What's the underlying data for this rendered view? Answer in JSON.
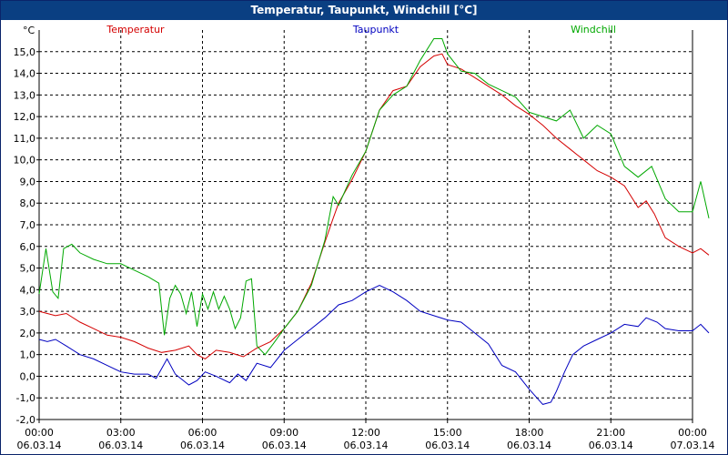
{
  "window": {
    "title": "Temperatur, Taupunkt, Windchill [°C]"
  },
  "chart_data": {
    "type": "line",
    "title": "Temperatur, Taupunkt, Windchill [°C]",
    "ylabel": "°C",
    "xlabel": "",
    "ylim": [
      -2.0,
      16.0
    ],
    "xlim_hours": [
      0,
      24
    ],
    "grid": true,
    "y_ticks": [
      {
        "value": -2.0,
        "label": "-2,0"
      },
      {
        "value": -1.0,
        "label": "-1,0"
      },
      {
        "value": 0.0,
        "label": "0,0"
      },
      {
        "value": 1.0,
        "label": "1,0"
      },
      {
        "value": 2.0,
        "label": "2,0"
      },
      {
        "value": 3.0,
        "label": "3,0"
      },
      {
        "value": 4.0,
        "label": "4,0"
      },
      {
        "value": 5.0,
        "label": "5,0"
      },
      {
        "value": 6.0,
        "label": "6,0"
      },
      {
        "value": 7.0,
        "label": "7,0"
      },
      {
        "value": 8.0,
        "label": "8,0"
      },
      {
        "value": 9.0,
        "label": "9,0"
      },
      {
        "value": 10.0,
        "label": "10,0"
      },
      {
        "value": 11.0,
        "label": "11,0"
      },
      {
        "value": 12.0,
        "label": "12,0"
      },
      {
        "value": 13.0,
        "label": "13,0"
      },
      {
        "value": 14.0,
        "label": "14,0"
      },
      {
        "value": 15.0,
        "label": "15,0"
      }
    ],
    "x_ticks": [
      {
        "hour": 0,
        "time": "00:00",
        "date": "06.03.14"
      },
      {
        "hour": 3,
        "time": "03:00",
        "date": "06.03.14"
      },
      {
        "hour": 6,
        "time": "06:00",
        "date": "06.03.14"
      },
      {
        "hour": 9,
        "time": "09:00",
        "date": "06.03.14"
      },
      {
        "hour": 12,
        "time": "12:00",
        "date": "06.03.14"
      },
      {
        "hour": 15,
        "time": "15:00",
        "date": "06.03.14"
      },
      {
        "hour": 18,
        "time": "18:00",
        "date": "06.03.14"
      },
      {
        "hour": 21,
        "time": "21:00",
        "date": "06.03.14"
      },
      {
        "hour": 24,
        "time": "00:00",
        "date": "07.03.14"
      }
    ],
    "series": [
      {
        "name": "Temperatur",
        "color": "#d40000",
        "legend_position": "left",
        "points": [
          [
            0,
            3.0
          ],
          [
            0.3,
            2.9
          ],
          [
            0.6,
            2.8
          ],
          [
            1.0,
            2.9
          ],
          [
            1.5,
            2.5
          ],
          [
            2.0,
            2.2
          ],
          [
            2.5,
            1.9
          ],
          [
            3.0,
            1.8
          ],
          [
            3.5,
            1.6
          ],
          [
            4.0,
            1.3
          ],
          [
            4.5,
            1.1
          ],
          [
            5.0,
            1.2
          ],
          [
            5.5,
            1.4
          ],
          [
            5.8,
            1.0
          ],
          [
            6.1,
            0.8
          ],
          [
            6.5,
            1.2
          ],
          [
            7.0,
            1.1
          ],
          [
            7.5,
            0.9
          ],
          [
            8.0,
            1.3
          ],
          [
            8.5,
            1.6
          ],
          [
            9.0,
            2.2
          ],
          [
            9.5,
            3.0
          ],
          [
            10.0,
            4.3
          ],
          [
            10.5,
            6.2
          ],
          [
            10.8,
            7.3
          ],
          [
            11.0,
            8.0
          ],
          [
            11.5,
            9.1
          ],
          [
            12.0,
            10.4
          ],
          [
            12.5,
            12.3
          ],
          [
            13.0,
            13.2
          ],
          [
            13.5,
            13.4
          ],
          [
            14.0,
            14.3
          ],
          [
            14.5,
            14.8
          ],
          [
            14.8,
            14.9
          ],
          [
            15.0,
            14.4
          ],
          [
            15.5,
            14.2
          ],
          [
            16.0,
            13.8
          ],
          [
            16.5,
            13.4
          ],
          [
            17.0,
            13.0
          ],
          [
            17.5,
            12.5
          ],
          [
            18.0,
            12.1
          ],
          [
            18.5,
            11.6
          ],
          [
            19.0,
            11.0
          ],
          [
            19.5,
            10.5
          ],
          [
            20.0,
            10.0
          ],
          [
            20.5,
            9.5
          ],
          [
            21.0,
            9.2
          ],
          [
            21.5,
            8.8
          ],
          [
            22.0,
            7.8
          ],
          [
            22.3,
            8.1
          ],
          [
            22.6,
            7.5
          ],
          [
            23.0,
            6.4
          ],
          [
            23.5,
            6.0
          ],
          [
            24.0,
            5.7
          ],
          [
            24.3,
            5.9
          ],
          [
            24.6,
            5.6
          ]
        ]
      },
      {
        "name": "Taupunkt",
        "color": "#0000c0",
        "legend_position": "center",
        "points": [
          [
            0,
            1.7
          ],
          [
            0.3,
            1.6
          ],
          [
            0.6,
            1.7
          ],
          [
            1.0,
            1.4
          ],
          [
            1.5,
            1.0
          ],
          [
            2.0,
            0.8
          ],
          [
            2.5,
            0.5
          ],
          [
            3.0,
            0.2
          ],
          [
            3.5,
            0.1
          ],
          [
            4.0,
            0.1
          ],
          [
            4.3,
            -0.1
          ],
          [
            4.7,
            0.8
          ],
          [
            5.0,
            0.1
          ],
          [
            5.5,
            -0.4
          ],
          [
            5.8,
            -0.2
          ],
          [
            6.1,
            0.2
          ],
          [
            6.5,
            0.0
          ],
          [
            7.0,
            -0.3
          ],
          [
            7.3,
            0.1
          ],
          [
            7.6,
            -0.2
          ],
          [
            8.0,
            0.6
          ],
          [
            8.5,
            0.4
          ],
          [
            9.0,
            1.2
          ],
          [
            9.5,
            1.7
          ],
          [
            10.0,
            2.2
          ],
          [
            10.5,
            2.7
          ],
          [
            11.0,
            3.3
          ],
          [
            11.5,
            3.5
          ],
          [
            12.0,
            3.9
          ],
          [
            12.5,
            4.2
          ],
          [
            13.0,
            3.9
          ],
          [
            13.5,
            3.5
          ],
          [
            14.0,
            3.0
          ],
          [
            14.5,
            2.8
          ],
          [
            15.0,
            2.6
          ],
          [
            15.5,
            2.5
          ],
          [
            16.0,
            2.0
          ],
          [
            16.5,
            1.5
          ],
          [
            17.0,
            0.5
          ],
          [
            17.5,
            0.2
          ],
          [
            18.0,
            -0.6
          ],
          [
            18.5,
            -1.3
          ],
          [
            18.8,
            -1.2
          ],
          [
            19.0,
            -0.7
          ],
          [
            19.3,
            0.2
          ],
          [
            19.6,
            1.0
          ],
          [
            20.0,
            1.4
          ],
          [
            20.5,
            1.7
          ],
          [
            21.0,
            2.0
          ],
          [
            21.5,
            2.4
          ],
          [
            22.0,
            2.3
          ],
          [
            22.3,
            2.7
          ],
          [
            22.7,
            2.5
          ],
          [
            23.0,
            2.2
          ],
          [
            23.5,
            2.1
          ],
          [
            24.0,
            2.1
          ],
          [
            24.3,
            2.4
          ],
          [
            24.6,
            2.0
          ]
        ]
      },
      {
        "name": "Windchill",
        "color": "#00a800",
        "legend_position": "right",
        "points": [
          [
            0,
            3.8
          ],
          [
            0.25,
            5.9
          ],
          [
            0.5,
            3.9
          ],
          [
            0.7,
            3.6
          ],
          [
            0.9,
            5.9
          ],
          [
            1.2,
            6.1
          ],
          [
            1.5,
            5.7
          ],
          [
            2.0,
            5.4
          ],
          [
            2.5,
            5.2
          ],
          [
            3.0,
            5.2
          ],
          [
            3.5,
            4.9
          ],
          [
            4.0,
            4.6
          ],
          [
            4.4,
            4.3
          ],
          [
            4.6,
            1.9
          ],
          [
            4.8,
            3.6
          ],
          [
            5.0,
            4.2
          ],
          [
            5.2,
            3.8
          ],
          [
            5.4,
            2.9
          ],
          [
            5.6,
            3.9
          ],
          [
            5.8,
            2.3
          ],
          [
            6.0,
            3.8
          ],
          [
            6.2,
            3.1
          ],
          [
            6.4,
            3.9
          ],
          [
            6.6,
            3.1
          ],
          [
            6.8,
            3.7
          ],
          [
            7.0,
            3.1
          ],
          [
            7.2,
            2.2
          ],
          [
            7.4,
            2.7
          ],
          [
            7.6,
            4.4
          ],
          [
            7.8,
            4.5
          ],
          [
            8.0,
            1.4
          ],
          [
            8.3,
            1.0
          ],
          [
            8.6,
            1.5
          ],
          [
            9.0,
            2.2
          ],
          [
            9.5,
            3.0
          ],
          [
            10.0,
            4.2
          ],
          [
            10.5,
            6.3
          ],
          [
            10.8,
            8.3
          ],
          [
            11.0,
            7.9
          ],
          [
            11.5,
            9.3
          ],
          [
            12.0,
            10.4
          ],
          [
            12.5,
            12.3
          ],
          [
            13.0,
            13.0
          ],
          [
            13.5,
            13.4
          ],
          [
            14.0,
            14.6
          ],
          [
            14.5,
            15.6
          ],
          [
            14.8,
            15.6
          ],
          [
            15.0,
            14.9
          ],
          [
            15.5,
            14.1
          ],
          [
            16.0,
            14.0
          ],
          [
            16.5,
            13.5
          ],
          [
            17.0,
            13.2
          ],
          [
            17.5,
            12.9
          ],
          [
            18.0,
            12.2
          ],
          [
            18.5,
            12.0
          ],
          [
            19.0,
            11.8
          ],
          [
            19.5,
            12.3
          ],
          [
            20.0,
            11.0
          ],
          [
            20.5,
            11.6
          ],
          [
            21.0,
            11.2
          ],
          [
            21.5,
            9.7
          ],
          [
            22.0,
            9.2
          ],
          [
            22.5,
            9.7
          ],
          [
            23.0,
            8.2
          ],
          [
            23.5,
            7.6
          ],
          [
            24.0,
            7.6
          ],
          [
            24.3,
            9.0
          ],
          [
            24.6,
            7.3
          ]
        ]
      }
    ]
  }
}
